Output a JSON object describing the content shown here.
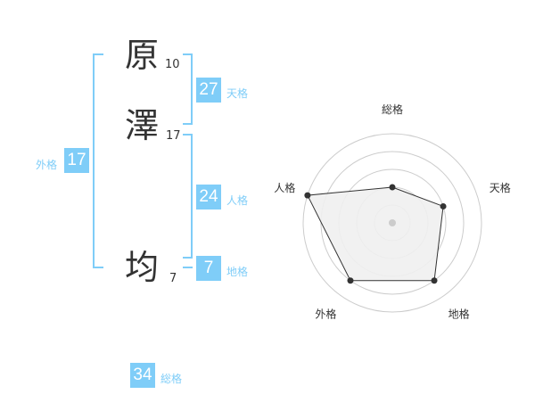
{
  "name": [
    {
      "char": "原",
      "strokes": "10"
    },
    {
      "char": "澤",
      "strokes": "17"
    },
    {
      "char": "均",
      "strokes": "7"
    }
  ],
  "fortunes": {
    "tenkaku": {
      "label": "天格",
      "value": "27"
    },
    "jinkaku": {
      "label": "人格",
      "value": "24"
    },
    "chikaku": {
      "label": "地格",
      "value": "7"
    },
    "gaikaku": {
      "label": "外格",
      "value": "17"
    },
    "soukaku": {
      "label": "総格",
      "value": "34"
    }
  },
  "chart_data": {
    "type": "radar",
    "axes": [
      "総格",
      "天格",
      "地格",
      "外格",
      "人格"
    ],
    "values": [
      2,
      3,
      4,
      4,
      5
    ],
    "range": [
      0,
      5
    ],
    "rings": 5,
    "colors": {
      "fill": "#f0f0f0",
      "line": "#333333",
      "ring": "#cccccc"
    }
  },
  "colors": {
    "accent": "#7fcdf8",
    "text": "#333333"
  }
}
